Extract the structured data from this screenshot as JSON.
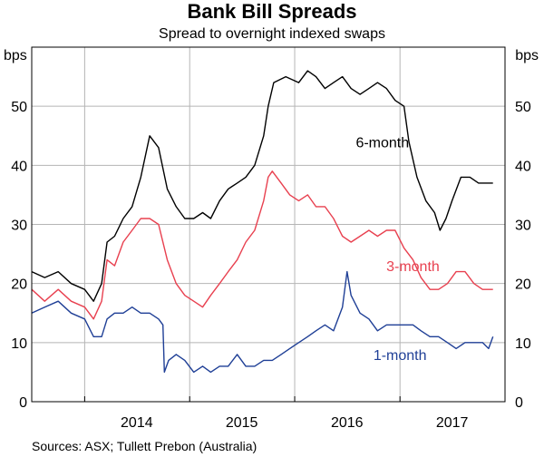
{
  "chart_data": {
    "type": "line",
    "title": "Bank Bill Spreads",
    "subtitle": "Spread to overnight indexed swaps",
    "ylabel_left": "bps",
    "ylabel_right": "bps",
    "ylim": [
      0,
      60
    ],
    "yticks": [
      0,
      10,
      20,
      30,
      40,
      50
    ],
    "x_start": "2013-07-01",
    "x_end": "2018-01-01",
    "x_ticks": [
      {
        "label": "2014",
        "x": "2014-07-01"
      },
      {
        "label": "2015",
        "x": "2015-07-01"
      },
      {
        "label": "2016",
        "x": "2016-07-01"
      },
      {
        "label": "2017",
        "x": "2017-07-01"
      }
    ],
    "x_grid_boundaries": [
      "2014-01-01",
      "2015-01-01",
      "2016-01-01",
      "2017-01-01"
    ],
    "grid": true,
    "legend": "inline labels",
    "series": [
      {
        "name": "6-month",
        "color": "#000000",
        "label_at": [
          "2016-11-01",
          44
        ],
        "points": [
          [
            "2013-07-01",
            22
          ],
          [
            "2013-08-15",
            21
          ],
          [
            "2013-10-01",
            22
          ],
          [
            "2013-11-15",
            20
          ],
          [
            "2014-01-01",
            19
          ],
          [
            "2014-02-01",
            17
          ],
          [
            "2014-03-01",
            20
          ],
          [
            "2014-03-20",
            27
          ],
          [
            "2014-04-15",
            28
          ],
          [
            "2014-05-15",
            31
          ],
          [
            "2014-06-15",
            33
          ],
          [
            "2014-07-15",
            38
          ],
          [
            "2014-08-15",
            45
          ],
          [
            "2014-09-15",
            43
          ],
          [
            "2014-10-15",
            36
          ],
          [
            "2014-11-15",
            33
          ],
          [
            "2014-12-15",
            31
          ],
          [
            "2015-01-15",
            31
          ],
          [
            "2015-02-15",
            32
          ],
          [
            "2015-03-15",
            31
          ],
          [
            "2015-04-15",
            34
          ],
          [
            "2015-05-15",
            36
          ],
          [
            "2015-06-15",
            37
          ],
          [
            "2015-07-15",
            38
          ],
          [
            "2015-08-15",
            40
          ],
          [
            "2015-09-15",
            45
          ],
          [
            "2015-10-01",
            50
          ],
          [
            "2015-10-20",
            54
          ],
          [
            "2015-12-01",
            55
          ],
          [
            "2016-01-15",
            54
          ],
          [
            "2016-02-15",
            56
          ],
          [
            "2016-03-15",
            55
          ],
          [
            "2016-04-15",
            53
          ],
          [
            "2016-05-15",
            54
          ],
          [
            "2016-06-15",
            55
          ],
          [
            "2016-07-15",
            53
          ],
          [
            "2016-08-15",
            52
          ],
          [
            "2016-09-15",
            53
          ],
          [
            "2016-10-15",
            54
          ],
          [
            "2016-11-15",
            53
          ],
          [
            "2016-12-15",
            51
          ],
          [
            "2017-01-15",
            50
          ],
          [
            "2017-02-01",
            44
          ],
          [
            "2017-03-01",
            38
          ],
          [
            "2017-04-01",
            34
          ],
          [
            "2017-05-01",
            32
          ],
          [
            "2017-05-20",
            29
          ],
          [
            "2017-06-10",
            31
          ],
          [
            "2017-07-01",
            34
          ],
          [
            "2017-08-01",
            38
          ],
          [
            "2017-09-01",
            38
          ],
          [
            "2017-10-01",
            37
          ],
          [
            "2017-11-01",
            37
          ],
          [
            "2017-11-20",
            37
          ]
        ]
      },
      {
        "name": "3-month",
        "color": "#e8404f",
        "label_at": [
          "2017-02-15",
          23
        ],
        "points": [
          [
            "2013-07-01",
            19
          ],
          [
            "2013-08-15",
            17
          ],
          [
            "2013-10-01",
            19
          ],
          [
            "2013-11-15",
            17
          ],
          [
            "2014-01-01",
            16
          ],
          [
            "2014-02-01",
            14
          ],
          [
            "2014-03-01",
            17
          ],
          [
            "2014-03-20",
            24
          ],
          [
            "2014-04-15",
            23
          ],
          [
            "2014-05-15",
            27
          ],
          [
            "2014-06-15",
            29
          ],
          [
            "2014-07-15",
            31
          ],
          [
            "2014-08-15",
            31
          ],
          [
            "2014-09-15",
            30
          ],
          [
            "2014-10-15",
            24
          ],
          [
            "2014-11-15",
            20
          ],
          [
            "2014-12-15",
            18
          ],
          [
            "2015-01-15",
            17
          ],
          [
            "2015-02-15",
            16
          ],
          [
            "2015-03-15",
            18
          ],
          [
            "2015-04-15",
            20
          ],
          [
            "2015-05-15",
            22
          ],
          [
            "2015-06-15",
            24
          ],
          [
            "2015-07-15",
            27
          ],
          [
            "2015-08-15",
            29
          ],
          [
            "2015-09-15",
            34
          ],
          [
            "2015-10-01",
            38
          ],
          [
            "2015-10-15",
            39
          ],
          [
            "2015-11-15",
            37
          ],
          [
            "2015-12-15",
            35
          ],
          [
            "2016-01-15",
            34
          ],
          [
            "2016-02-15",
            35
          ],
          [
            "2016-03-15",
            33
          ],
          [
            "2016-04-15",
            33
          ],
          [
            "2016-05-15",
            31
          ],
          [
            "2016-06-15",
            28
          ],
          [
            "2016-07-15",
            27
          ],
          [
            "2016-08-15",
            28
          ],
          [
            "2016-09-15",
            29
          ],
          [
            "2016-10-15",
            28
          ],
          [
            "2016-11-15",
            29
          ],
          [
            "2016-12-15",
            29
          ],
          [
            "2017-01-15",
            26
          ],
          [
            "2017-02-15",
            24
          ],
          [
            "2017-03-15",
            21
          ],
          [
            "2017-04-15",
            19
          ],
          [
            "2017-05-15",
            19
          ],
          [
            "2017-06-15",
            20
          ],
          [
            "2017-07-15",
            22
          ],
          [
            "2017-08-15",
            22
          ],
          [
            "2017-09-15",
            20
          ],
          [
            "2017-10-15",
            19
          ],
          [
            "2017-11-20",
            19
          ]
        ]
      },
      {
        "name": "1-month",
        "color": "#1f3f96",
        "label_at": [
          "2017-01-01",
          8
        ],
        "points": [
          [
            "2013-07-01",
            15
          ],
          [
            "2013-08-15",
            16
          ],
          [
            "2013-10-01",
            17
          ],
          [
            "2013-11-15",
            15
          ],
          [
            "2014-01-01",
            14
          ],
          [
            "2014-02-01",
            11
          ],
          [
            "2014-03-01",
            11
          ],
          [
            "2014-03-20",
            14
          ],
          [
            "2014-04-15",
            15
          ],
          [
            "2014-05-15",
            15
          ],
          [
            "2014-06-15",
            16
          ],
          [
            "2014-07-15",
            15
          ],
          [
            "2014-08-15",
            15
          ],
          [
            "2014-09-15",
            14
          ],
          [
            "2014-09-30",
            13
          ],
          [
            "2014-10-05",
            5
          ],
          [
            "2014-10-20",
            7
          ],
          [
            "2014-11-15",
            8
          ],
          [
            "2014-12-15",
            7
          ],
          [
            "2015-01-15",
            5
          ],
          [
            "2015-02-15",
            6
          ],
          [
            "2015-03-15",
            5
          ],
          [
            "2015-04-15",
            6
          ],
          [
            "2015-05-15",
            6
          ],
          [
            "2015-06-15",
            8
          ],
          [
            "2015-07-15",
            6
          ],
          [
            "2015-08-15",
            6
          ],
          [
            "2015-09-15",
            7
          ],
          [
            "2015-10-15",
            7
          ],
          [
            "2015-11-15",
            8
          ],
          [
            "2015-12-15",
            9
          ],
          [
            "2016-01-15",
            10
          ],
          [
            "2016-02-15",
            11
          ],
          [
            "2016-03-15",
            12
          ],
          [
            "2016-04-15",
            13
          ],
          [
            "2016-05-15",
            12
          ],
          [
            "2016-06-15",
            16
          ],
          [
            "2016-07-01",
            22
          ],
          [
            "2016-07-15",
            18
          ],
          [
            "2016-08-15",
            15
          ],
          [
            "2016-09-15",
            14
          ],
          [
            "2016-10-15",
            12
          ],
          [
            "2016-11-15",
            13
          ],
          [
            "2016-12-15",
            13
          ],
          [
            "2017-01-15",
            13
          ],
          [
            "2017-02-15",
            13
          ],
          [
            "2017-03-15",
            12
          ],
          [
            "2017-04-15",
            11
          ],
          [
            "2017-05-15",
            11
          ],
          [
            "2017-06-15",
            10
          ],
          [
            "2017-07-15",
            9
          ],
          [
            "2017-08-15",
            10
          ],
          [
            "2017-09-15",
            10
          ],
          [
            "2017-10-15",
            10
          ],
          [
            "2017-11-05",
            9
          ],
          [
            "2017-11-20",
            11
          ]
        ]
      }
    ]
  },
  "source": "Sources: ASX; Tullett Prebon (Australia)"
}
